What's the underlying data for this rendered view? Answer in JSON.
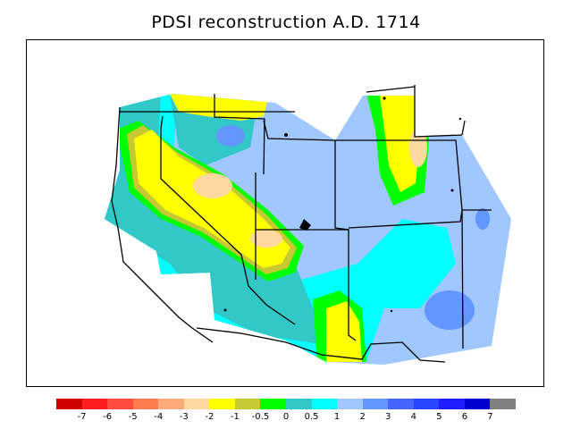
{
  "title": "PDSI reconstruction A.D. 1714",
  "colorbar": {
    "colors": [
      "#d10000",
      "#ff1e1e",
      "#ff4c3c",
      "#ff7b50",
      "#ffaa78",
      "#ffd7a0",
      "#ffff00",
      "#c8c832",
      "#00ff00",
      "#32c8c8",
      "#00ffff",
      "#a0c8ff",
      "#6496ff",
      "#4664ff",
      "#2846ff",
      "#1e1eff",
      "#0000d1",
      "#808080"
    ],
    "labels": [
      "-7",
      "-6",
      "-5",
      "-4",
      "-3",
      "-2",
      "-1",
      "-0.5",
      "0",
      "0.5",
      "1",
      "2",
      "3",
      "4",
      "5",
      "6",
      "7"
    ]
  },
  "map_regions": {
    "background_class": "1 to 2",
    "wet_cores_class": "2 to 3",
    "dry_band_class": "-2 to -1",
    "driest_cores_class": "-3 to -2"
  }
}
